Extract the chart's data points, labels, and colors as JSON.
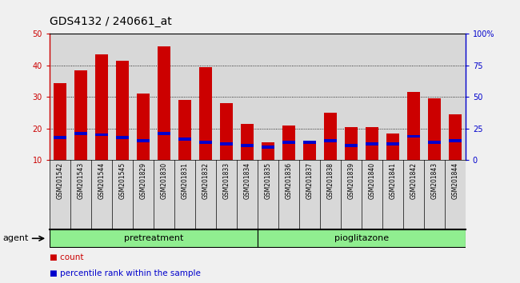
{
  "title": "GDS4132 / 240661_at",
  "samples": [
    "GSM201542",
    "GSM201543",
    "GSM201544",
    "GSM201545",
    "GSM201829",
    "GSM201830",
    "GSM201831",
    "GSM201832",
    "GSM201833",
    "GSM201834",
    "GSM201835",
    "GSM201836",
    "GSM201837",
    "GSM201838",
    "GSM201839",
    "GSM201840",
    "GSM201841",
    "GSM201842",
    "GSM201843",
    "GSM201844"
  ],
  "count_values": [
    34.5,
    38.5,
    43.5,
    41.5,
    31.0,
    46.0,
    29.0,
    39.5,
    28.0,
    21.5,
    15.5,
    20.8,
    15.5,
    25.0,
    20.5,
    20.5,
    18.5,
    31.5,
    29.5,
    24.5
  ],
  "percentile_bottom": [
    16.5,
    18.0,
    17.5,
    16.5,
    15.5,
    18.0,
    16.0,
    15.0,
    14.5,
    14.0,
    13.5,
    15.0,
    15.0,
    15.5,
    14.0,
    14.5,
    14.5,
    17.0,
    15.0,
    15.5
  ],
  "percentile_top": [
    17.5,
    19.0,
    18.5,
    17.5,
    16.5,
    19.0,
    17.0,
    16.0,
    15.5,
    15.0,
    14.5,
    16.0,
    16.0,
    16.5,
    15.0,
    15.5,
    15.5,
    18.0,
    16.0,
    16.5
  ],
  "bar_color": "#cc0000",
  "percentile_color": "#0000cc",
  "ylim_left": [
    10,
    50
  ],
  "ylim_right": [
    0,
    100
  ],
  "yticks_left": [
    10,
    20,
    30,
    40,
    50
  ],
  "yticks_right": [
    0,
    25,
    50,
    75,
    100
  ],
  "ytick_labels_right": [
    "0",
    "25",
    "50",
    "75",
    "100%"
  ],
  "group1_label": "pretreatment",
  "group2_label": "pioglitazone",
  "agent_label": "agent",
  "legend_count": "count",
  "legend_percentile": "percentile rank within the sample",
  "bar_width": 0.6,
  "cell_bg": "#d8d8d8",
  "plot_bg": "#d8d8d8",
  "group_bg": "#90ee90",
  "title_fontsize": 10,
  "tick_fontsize": 7,
  "label_fontsize": 8
}
